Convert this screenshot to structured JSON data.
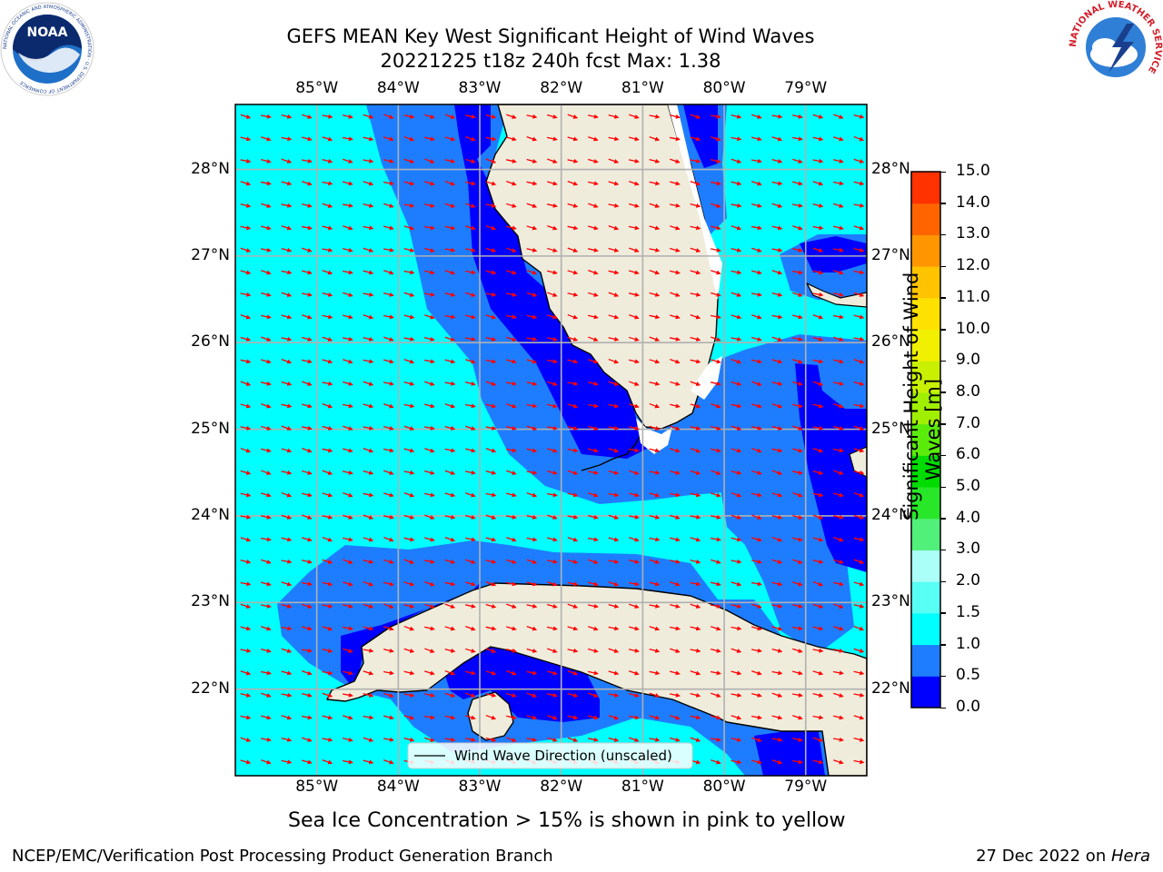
{
  "header": {
    "title_line1": "GEFS MEAN Key West Significant Height of Wind Waves",
    "title_line2": "20221225 t18z 240h fcst   Max: 1.38"
  },
  "logos": {
    "noaa_text": "NOAA",
    "nws_text": "NATIONAL WEATHER SERVICE",
    "noaa_ring_text": "NATIONAL OCEANIC AND ATMOSPHERIC ADMINISTRATION · U.S. DEPARTMENT OF COMMERCE"
  },
  "map": {
    "lon_labels": [
      "85°W",
      "84°W",
      "83°W",
      "82°W",
      "81°W",
      "80°W",
      "79°W"
    ],
    "lat_labels": [
      "28°N",
      "27°N",
      "26°N",
      "25°N",
      "24°N",
      "23°N",
      "22°N"
    ],
    "extent": {
      "lon": [
        -86.0,
        -78.25
      ],
      "lat": [
        21.0,
        28.75
      ]
    },
    "legend_label": "Wind Wave Direction (unscaled)",
    "ocean_color": "#00ffff",
    "land_color": "#efecdc",
    "arrow_color": "#ff0000",
    "grid_color": "#b0b0b0"
  },
  "colorbar": {
    "label": "Significant Height of Wind Waves [m]",
    "label_line1": "Significant Height of Wind",
    "label_line2": "Waves [m]",
    "ticks": [
      "0.0",
      "0.5",
      "1.0",
      "1.5",
      "2.0",
      "3.0",
      "4.0",
      "5.0",
      "6.0",
      "7.0",
      "8.0",
      "9.0",
      "10.0",
      "11.0",
      "12.0",
      "13.0",
      "14.0",
      "15.0"
    ],
    "colors": [
      "#0000ff",
      "#1e7dff",
      "#00ffff",
      "#57fff5",
      "#aafff8",
      "#50f07a",
      "#28e628",
      "#00dc00",
      "#5aeb0a",
      "#a0ee00",
      "#c8f000",
      "#f0f000",
      "#ffe100",
      "#ffc300",
      "#ff9600",
      "#ff6400",
      "#ff3200",
      "#ff0000"
    ]
  },
  "caption": "Sea Ice Concentration > 15% is shown in pink to yellow",
  "footer": {
    "left": "NCEP/EMC/Verification Post Processing Product Generation Branch",
    "right_date": "27 Dec 2022 on ",
    "right_machine": "Hera"
  }
}
